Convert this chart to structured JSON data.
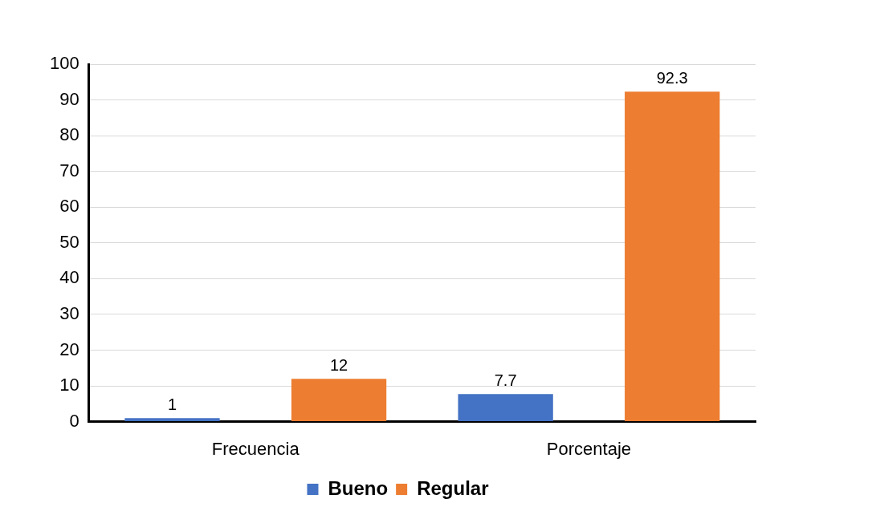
{
  "chart_data": {
    "type": "bar",
    "categories": [
      "Frecuencia",
      "Porcentaje"
    ],
    "series": [
      {
        "name": "Bueno",
        "color": "#4472c4",
        "values": [
          1,
          7.7
        ]
      },
      {
        "name": "Regular",
        "color": "#ed7d31",
        "values": [
          12,
          92.3
        ]
      }
    ],
    "ylim": [
      0,
      100
    ],
    "yticks": [
      0,
      10,
      20,
      30,
      40,
      50,
      60,
      70,
      80,
      90,
      100
    ],
    "grid": "y",
    "legend": "bottom",
    "data_labels": true
  }
}
